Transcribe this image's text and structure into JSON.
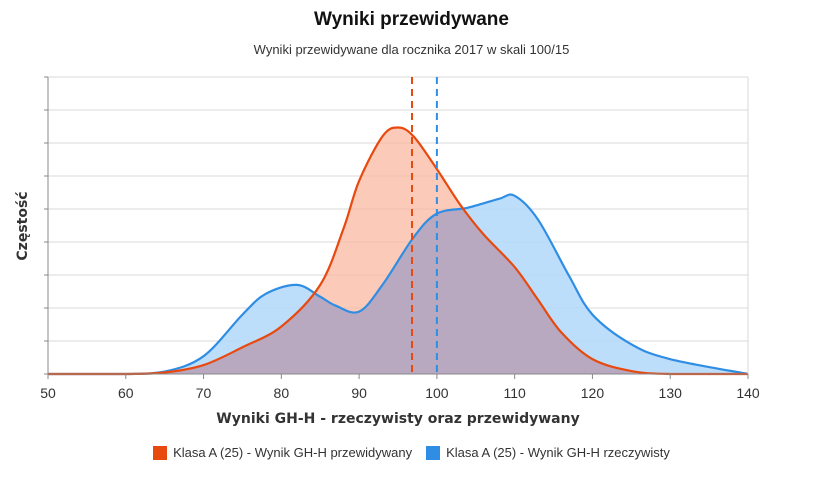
{
  "chart_data": {
    "type": "area",
    "title": "Wyniki przewidywane",
    "subtitle": "Wyniki przewidywane dla rocznika 2017 w skali 100/15",
    "xlabel": "Wyniki GH-H - rzeczywisty oraz przewidywany",
    "ylabel": "Częstość",
    "xlim": [
      50,
      140
    ],
    "ylim": [
      0,
      1
    ],
    "x_ticks": [
      50,
      60,
      70,
      80,
      90,
      100,
      110,
      120,
      130,
      140
    ],
    "grid": true,
    "legend_position": "bottom",
    "series": [
      {
        "name": "Klasa A (25) - Wynik GH-H przewidywany",
        "color": "#e8490f",
        "fill": "#f9b8a0",
        "mean": 96.8,
        "x": [
          50,
          60,
          65,
          70,
          75,
          80,
          85,
          88,
          90,
          93,
          95,
          97,
          100,
          103,
          106,
          110,
          113,
          116,
          120,
          125,
          130,
          140
        ],
        "y": [
          0.0,
          0.0,
          0.005,
          0.03,
          0.09,
          0.16,
          0.3,
          0.49,
          0.65,
          0.8,
          0.83,
          0.8,
          0.69,
          0.57,
          0.47,
          0.36,
          0.25,
          0.14,
          0.05,
          0.01,
          0.0,
          0.0
        ]
      },
      {
        "name": "Klasa A (25) - Wynik GH-H rzeczywisty",
        "color": "#2f8de4",
        "fill": "#b5dafa",
        "mean": 100.0,
        "x": [
          50,
          60,
          65,
          70,
          75,
          78,
          82,
          85,
          87,
          90,
          93,
          97,
          100,
          104,
          108,
          110,
          113,
          117,
          120,
          125,
          130,
          140
        ],
        "y": [
          0.0,
          0.0,
          0.008,
          0.06,
          0.2,
          0.27,
          0.3,
          0.26,
          0.23,
          0.21,
          0.3,
          0.46,
          0.54,
          0.56,
          0.59,
          0.6,
          0.52,
          0.33,
          0.2,
          0.1,
          0.05,
          0.0
        ]
      }
    ]
  }
}
